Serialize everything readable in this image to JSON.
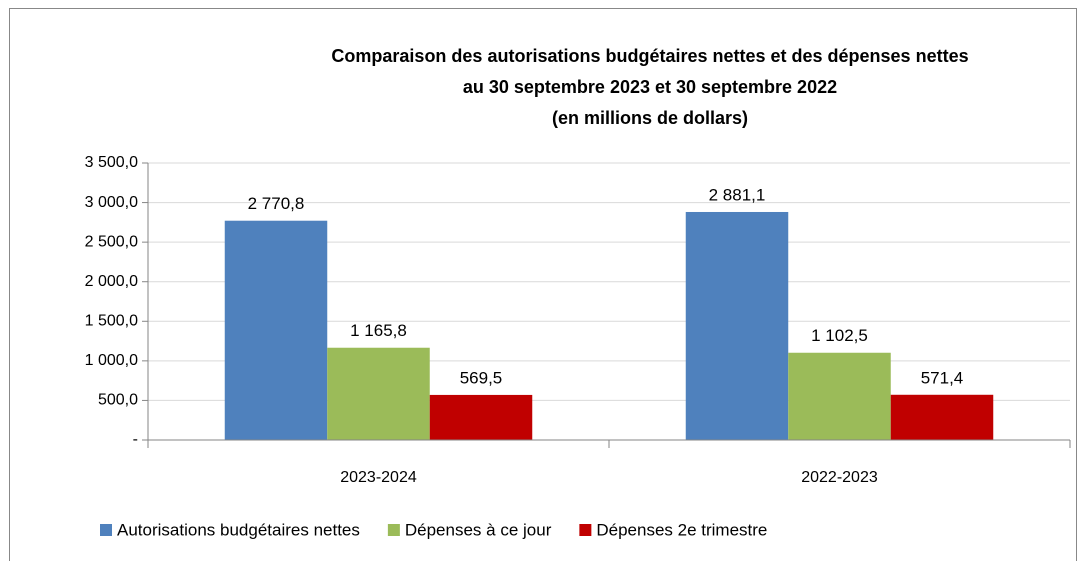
{
  "chart_data": {
    "type": "bar",
    "title": [
      "Comparaison des autorisations budgétaires nettes et des dépenses nettes",
      "au 30 septembre 2023 et 30 septembre 2022",
      "(en millions de dollars)"
    ],
    "categories": [
      "2023-2024",
      "2022-2023"
    ],
    "series": [
      {
        "name": "Autorisations budgétaires nettes",
        "color": "#4f81bd",
        "values": [
          2770.8,
          2881.1
        ],
        "value_labels": [
          "2 770,8",
          "2 881,1"
        ]
      },
      {
        "name": "Dépenses à ce jour",
        "color": "#9bbb59",
        "values": [
          1165.8,
          1102.5
        ],
        "value_labels": [
          "1 165,8",
          "1 102,5"
        ]
      },
      {
        "name": "Dépenses 2e trimestre",
        "color": "#c00000",
        "values": [
          569.5,
          571.4
        ],
        "value_labels": [
          "569,5",
          "571,4"
        ]
      }
    ],
    "ylim": [
      0,
      3500
    ],
    "yticks": [
      {
        "value": 0,
        "label": "-"
      },
      {
        "value": 500,
        "label": "500,0"
      },
      {
        "value": 1000,
        "label": "1 000,0"
      },
      {
        "value": 1500,
        "label": "1 500,0"
      },
      {
        "value": 2000,
        "label": "2 000,0"
      },
      {
        "value": 2500,
        "label": "2 500,0"
      },
      {
        "value": 3000,
        "label": "3 000,0"
      },
      {
        "value": 3500,
        "label": "3 500,0"
      }
    ],
    "grid": true,
    "legend": "bottom"
  }
}
